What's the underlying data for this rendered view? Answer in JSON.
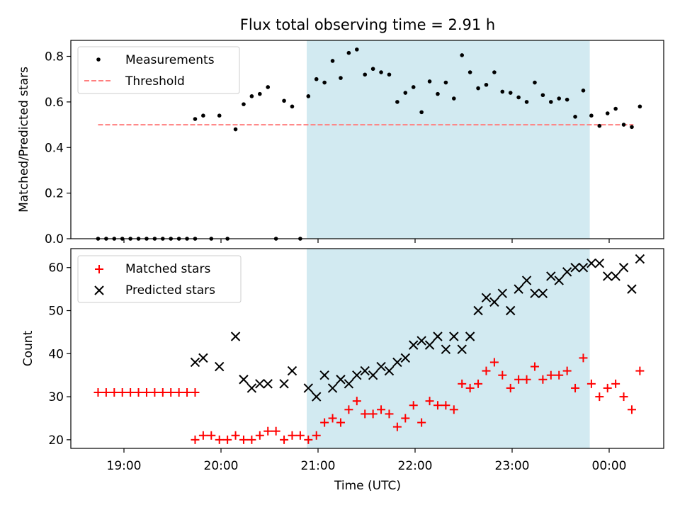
{
  "chart_data": {
    "title": "Flux total observing time = 2.91 h",
    "xlabel": "Time (UTC)",
    "x_ticks": [
      "19:00",
      "20:00",
      "21:00",
      "22:00",
      "23:00",
      "00:00"
    ],
    "highlight_region": {
      "start": "20:53",
      "end": "23:48",
      "color": "#add8e6"
    },
    "panels": [
      {
        "type": "scatter",
        "ylabel": "Matched/Predicted stars",
        "ylim": [
          0,
          0.87
        ],
        "y_ticks": [
          "0.0",
          "0.2",
          "0.4",
          "0.6",
          "0.8"
        ],
        "legend_position": "upper-left",
        "threshold": {
          "name": "Threshold",
          "value": 0.5,
          "x_start": "18:44",
          "x_end": "00:15",
          "color": "#ff7f7f"
        },
        "series": [
          {
            "name": "Measurements",
            "marker": "dot",
            "color": "#000000",
            "points": [
              [
                "18:44",
                0
              ],
              [
                "18:49",
                0
              ],
              [
                "18:54",
                0
              ],
              [
                "18:59",
                0
              ],
              [
                "19:04",
                0
              ],
              [
                "19:09",
                0
              ],
              [
                "19:14",
                0
              ],
              [
                "19:19",
                0
              ],
              [
                "19:24",
                0
              ],
              [
                "19:29",
                0
              ],
              [
                "19:34",
                0
              ],
              [
                "19:39",
                0
              ],
              [
                "19:44",
                0
              ],
              [
                "19:44",
                0.525
              ],
              [
                "19:49",
                0.54
              ],
              [
                "19:54",
                0
              ],
              [
                "19:59",
                0.54
              ],
              [
                "20:04",
                0
              ],
              [
                "20:09",
                0.48
              ],
              [
                "20:14",
                0.59
              ],
              [
                "20:19",
                0.625
              ],
              [
                "20:24",
                0.635
              ],
              [
                "20:29",
                0.665
              ],
              [
                "20:34",
                0
              ],
              [
                "20:39",
                0.605
              ],
              [
                "20:44",
                0.58
              ],
              [
                "20:49",
                0
              ],
              [
                "20:54",
                0.625
              ],
              [
                "20:59",
                0.7
              ],
              [
                "21:04",
                0.685
              ],
              [
                "21:09",
                0.78
              ],
              [
                "21:14",
                0.705
              ],
              [
                "21:19",
                0.815
              ],
              [
                "21:24",
                0.83
              ],
              [
                "21:29",
                0.72
              ],
              [
                "21:34",
                0.745
              ],
              [
                "21:39",
                0.73
              ],
              [
                "21:44",
                0.72
              ],
              [
                "21:49",
                0.6
              ],
              [
                "21:54",
                0.64
              ],
              [
                "21:59",
                0.665
              ],
              [
                "22:04",
                0.555
              ],
              [
                "22:09",
                0.69
              ],
              [
                "22:14",
                0.635
              ],
              [
                "22:19",
                0.685
              ],
              [
                "22:24",
                0.615
              ],
              [
                "22:29",
                0.805
              ],
              [
                "22:34",
                0.73
              ],
              [
                "22:39",
                0.66
              ],
              [
                "22:44",
                0.675
              ],
              [
                "22:49",
                0.73
              ],
              [
                "22:54",
                0.645
              ],
              [
                "22:59",
                0.64
              ],
              [
                "23:04",
                0.62
              ],
              [
                "23:09",
                0.6
              ],
              [
                "23:14",
                0.685
              ],
              [
                "23:19",
                0.63
              ],
              [
                "23:24",
                0.6
              ],
              [
                "23:29",
                0.615
              ],
              [
                "23:34",
                0.61
              ],
              [
                "23:39",
                0.535
              ],
              [
                "23:44",
                0.65
              ],
              [
                "23:49",
                0.54
              ],
              [
                "23:54",
                0.495
              ],
              [
                "23:59",
                0.55
              ],
              [
                "00:04",
                0.57
              ],
              [
                "00:09",
                0.5
              ],
              [
                "00:14",
                0.49
              ],
              [
                "00:19",
                0.58
              ]
            ]
          }
        ]
      },
      {
        "type": "scatter",
        "ylabel": "Count",
        "ylim": [
          18,
          64.4
        ],
        "y_ticks": [
          "20",
          "30",
          "40",
          "50",
          "60"
        ],
        "legend_position": "upper-left",
        "series": [
          {
            "name": "Matched stars",
            "marker": "plus",
            "color": "#ff0000",
            "points": [
              [
                "18:44",
                31
              ],
              [
                "18:49",
                31
              ],
              [
                "18:54",
                31
              ],
              [
                "18:59",
                31
              ],
              [
                "19:04",
                31
              ],
              [
                "19:09",
                31
              ],
              [
                "19:14",
                31
              ],
              [
                "19:19",
                31
              ],
              [
                "19:24",
                31
              ],
              [
                "19:29",
                31
              ],
              [
                "19:34",
                31
              ],
              [
                "19:39",
                31
              ],
              [
                "19:44",
                31
              ],
              [
                "19:44",
                20
              ],
              [
                "19:49",
                21
              ],
              [
                "19:54",
                21
              ],
              [
                "19:59",
                20
              ],
              [
                "20:04",
                20
              ],
              [
                "20:09",
                21
              ],
              [
                "20:14",
                20
              ],
              [
                "20:19",
                20
              ],
              [
                "20:24",
                21
              ],
              [
                "20:29",
                22
              ],
              [
                "20:34",
                22
              ],
              [
                "20:39",
                20
              ],
              [
                "20:44",
                21
              ],
              [
                "20:49",
                21
              ],
              [
                "20:54",
                20
              ],
              [
                "20:59",
                21
              ],
              [
                "21:04",
                24
              ],
              [
                "21:09",
                25
              ],
              [
                "21:14",
                24
              ],
              [
                "21:19",
                27
              ],
              [
                "21:24",
                29
              ],
              [
                "21:29",
                26
              ],
              [
                "21:34",
                26
              ],
              [
                "21:39",
                27
              ],
              [
                "21:44",
                26
              ],
              [
                "21:49",
                23
              ],
              [
                "21:54",
                25
              ],
              [
                "21:59",
                28
              ],
              [
                "22:04",
                24
              ],
              [
                "22:09",
                29
              ],
              [
                "22:14",
                28
              ],
              [
                "22:19",
                28
              ],
              [
                "22:24",
                27
              ],
              [
                "22:29",
                33
              ],
              [
                "22:34",
                32
              ],
              [
                "22:39",
                33
              ],
              [
                "22:44",
                36
              ],
              [
                "22:49",
                38
              ],
              [
                "22:54",
                35
              ],
              [
                "22:59",
                32
              ],
              [
                "23:04",
                34
              ],
              [
                "23:09",
                34
              ],
              [
                "23:14",
                37
              ],
              [
                "23:19",
                34
              ],
              [
                "23:24",
                35
              ],
              [
                "23:29",
                35
              ],
              [
                "23:34",
                36
              ],
              [
                "23:39",
                32
              ],
              [
                "23:44",
                39
              ],
              [
                "23:49",
                33
              ],
              [
                "23:54",
                30
              ],
              [
                "23:59",
                32
              ],
              [
                "00:04",
                33
              ],
              [
                "00:09",
                30
              ],
              [
                "00:14",
                27
              ],
              [
                "00:19",
                36
              ]
            ]
          },
          {
            "name": "Predicted stars",
            "marker": "x",
            "color": "#000000",
            "points": [
              [
                "19:44",
                38
              ],
              [
                "19:49",
                39
              ],
              [
                "19:59",
                37
              ],
              [
                "20:09",
                44
              ],
              [
                "20:14",
                34
              ],
              [
                "20:19",
                32
              ],
              [
                "20:24",
                33
              ],
              [
                "20:29",
                33
              ],
              [
                "20:39",
                33
              ],
              [
                "20:44",
                36
              ],
              [
                "20:54",
                32
              ],
              [
                "20:59",
                30
              ],
              [
                "21:04",
                35
              ],
              [
                "21:09",
                32
              ],
              [
                "21:14",
                34
              ],
              [
                "21:19",
                33
              ],
              [
                "21:24",
                35
              ],
              [
                "21:29",
                36
              ],
              [
                "21:34",
                35
              ],
              [
                "21:39",
                37
              ],
              [
                "21:44",
                36
              ],
              [
                "21:49",
                38
              ],
              [
                "21:54",
                39
              ],
              [
                "21:59",
                42
              ],
              [
                "22:04",
                43
              ],
              [
                "22:09",
                42
              ],
              [
                "22:14",
                44
              ],
              [
                "22:19",
                41
              ],
              [
                "22:24",
                44
              ],
              [
                "22:29",
                41
              ],
              [
                "22:34",
                44
              ],
              [
                "22:39",
                50
              ],
              [
                "22:44",
                53
              ],
              [
                "22:49",
                52
              ],
              [
                "22:54",
                54
              ],
              [
                "22:59",
                50
              ],
              [
                "23:04",
                55
              ],
              [
                "23:09",
                57
              ],
              [
                "23:14",
                54
              ],
              [
                "23:19",
                54
              ],
              [
                "23:24",
                58
              ],
              [
                "23:29",
                57
              ],
              [
                "23:34",
                59
              ],
              [
                "23:39",
                60
              ],
              [
                "23:44",
                60
              ],
              [
                "23:49",
                61
              ],
              [
                "23:54",
                61
              ],
              [
                "23:59",
                58
              ],
              [
                "00:04",
                58
              ],
              [
                "00:09",
                60
              ],
              [
                "00:14",
                55
              ],
              [
                "00:19",
                62
              ]
            ]
          }
        ]
      }
    ]
  }
}
